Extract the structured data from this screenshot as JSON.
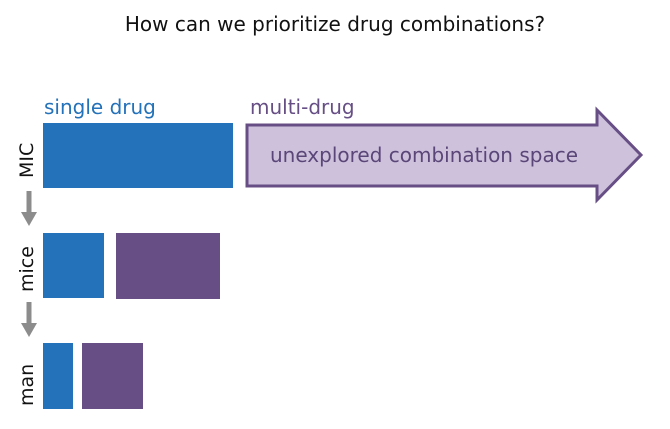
{
  "title": "How can we prioritize drug combinations?",
  "columns": {
    "single": {
      "label": "single drug",
      "color": "#2472b9"
    },
    "multi": {
      "label": "multi-drug",
      "color": "#674f86"
    }
  },
  "rows": [
    {
      "label": "MIC"
    },
    {
      "label": "mice"
    },
    {
      "label": "man"
    }
  ],
  "combination_space": {
    "label": "unexplored combination space",
    "fill": "#cdc1dc",
    "stroke": "#674f86",
    "text_color": "#5b4678"
  },
  "connector_color": "#8c8c8c"
}
